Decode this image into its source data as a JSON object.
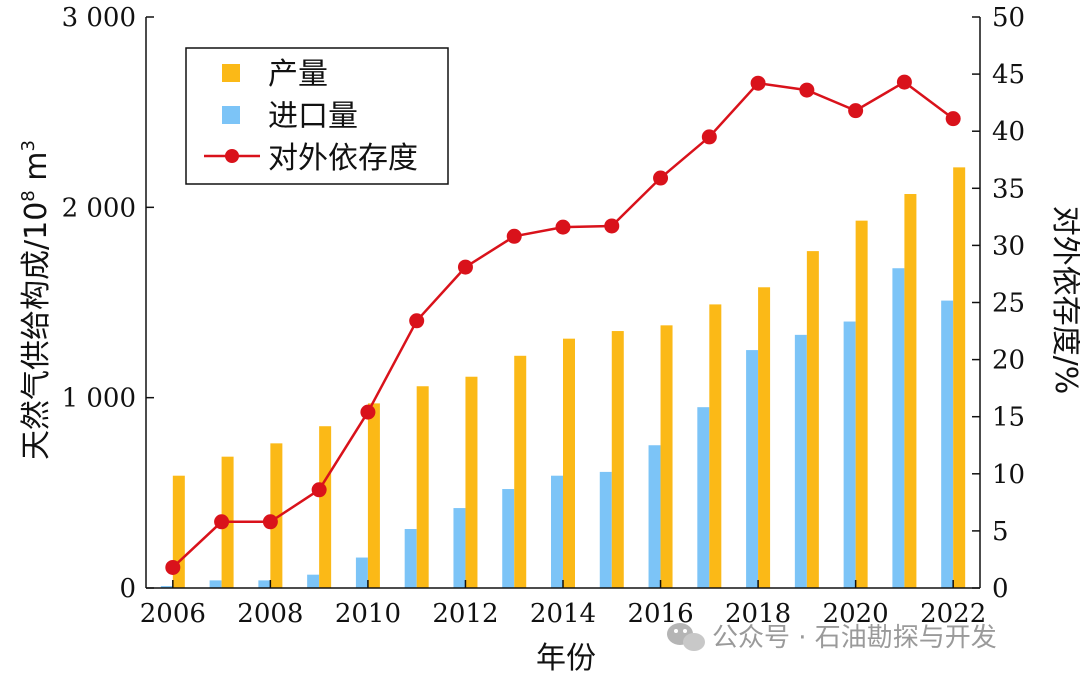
{
  "chart_data": {
    "type": "bar",
    "categories": [
      "2006",
      "2007",
      "2008",
      "2009",
      "2010",
      "2011",
      "2012",
      "2013",
      "2014",
      "2015",
      "2016",
      "2017",
      "2018",
      "2019",
      "2020",
      "2021",
      "2022"
    ],
    "x_tick_labels": [
      "2006",
      "2008",
      "2010",
      "2012",
      "2014",
      "2016",
      "2018",
      "2020",
      "2022"
    ],
    "series": [
      {
        "name": "产量",
        "kind": "bar",
        "axis": "left",
        "color": "#FBB917",
        "values": [
          590,
          690,
          760,
          850,
          970,
          1060,
          1110,
          1220,
          1310,
          1350,
          1380,
          1490,
          1580,
          1770,
          1930,
          2070,
          2210
        ]
      },
      {
        "name": "进口量",
        "kind": "bar",
        "axis": "left",
        "color": "#7CC4F7",
        "values": [
          10,
          40,
          40,
          70,
          160,
          310,
          420,
          520,
          590,
          610,
          750,
          950,
          1250,
          1330,
          1400,
          1680,
          1510
        ]
      },
      {
        "name": "对外依存度",
        "kind": "line",
        "axis": "right",
        "color": "#D9121B",
        "values": [
          1.8,
          5.8,
          5.8,
          8.6,
          15.4,
          23.4,
          28.1,
          30.8,
          31.6,
          31.7,
          35.9,
          39.5,
          44.2,
          43.6,
          41.8,
          44.3,
          41.1
        ]
      }
    ],
    "xlabel": "年份",
    "ylabel": "天然气供给构成/10⁸ m³",
    "ylabel_parts": {
      "main": "天然气供给构成/10",
      "sup1": "8",
      "mid": " m",
      "sup2": "3"
    },
    "y2label": "对外依存度/%",
    "ylim": [
      0,
      3000
    ],
    "y_ticks": [
      0,
      1000,
      2000,
      3000
    ],
    "y_tick_labels": [
      "0",
      "1 000",
      "2 000",
      "3 000"
    ],
    "y2lim": [
      0,
      50
    ],
    "y2_ticks": [
      0,
      5,
      10,
      15,
      20,
      25,
      30,
      35,
      40,
      45,
      50
    ],
    "y2_tick_labels": [
      "0",
      "5",
      "10",
      "15",
      "20",
      "25",
      "30",
      "35",
      "40",
      "45",
      "50"
    ],
    "grid": false,
    "legend_position": "top-left"
  },
  "watermark": "公众号 · 石油勘探与开发"
}
